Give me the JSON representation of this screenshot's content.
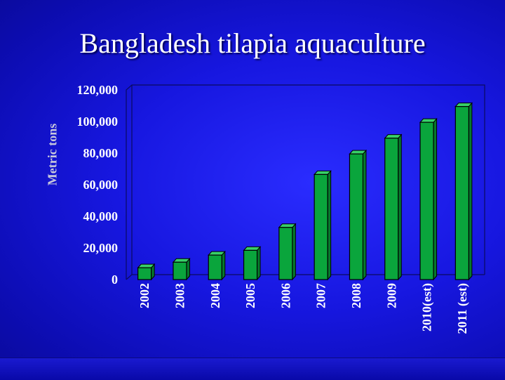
{
  "slide": {
    "title": "Bangladesh tilapia aquaculture"
  },
  "colors": {
    "background": "#1a1ae6",
    "bar_front": "#0aa53c",
    "bar_top": "#38d068",
    "bar_side": "#06782c",
    "text": "#ffffff"
  },
  "chart_data": {
    "type": "bar",
    "title": "Bangladesh tilapia aquaculture",
    "xlabel": "",
    "ylabel": "Metric tons",
    "categories": [
      "2002",
      "2003",
      "2004",
      "2005",
      "2006",
      "2007",
      "2008",
      "2009",
      "2010(est)",
      "2011 (est)"
    ],
    "values": [
      7500,
      11000,
      15500,
      18500,
      33000,
      66500,
      79500,
      89500,
      99500,
      109500
    ],
    "ylim": [
      0,
      120000
    ],
    "yticks": [
      "0",
      "20,000",
      "40,000",
      "60,000",
      "80,000",
      "100,000",
      "120,000"
    ],
    "grid": false,
    "legend": "none",
    "style": "3d-column"
  }
}
